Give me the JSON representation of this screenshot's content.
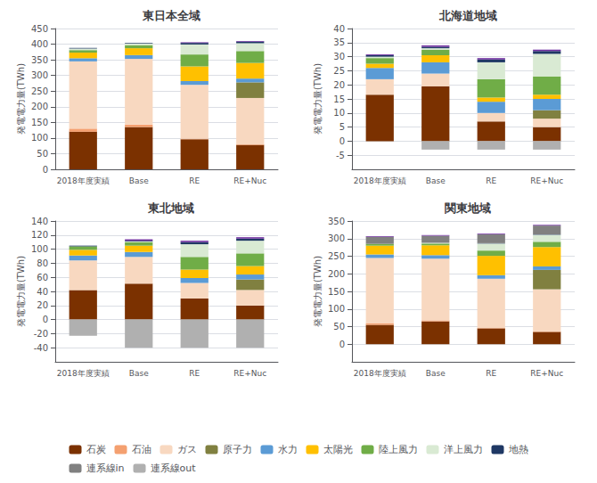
{
  "chart_data": [
    {
      "type": "bar",
      "title": "東日本全域",
      "ylabel": "発電電力量(TWh)",
      "categories": [
        "2018年度実績",
        "Base",
        "RE",
        "RE+Nuc"
      ],
      "stacked": true,
      "grid": true,
      "legend": "bottom",
      "ylim": [
        0,
        450
      ],
      "yticks": [
        0,
        50,
        100,
        150,
        200,
        250,
        300,
        350,
        400,
        450
      ],
      "series": [
        {
          "name": "石炭",
          "color": "#7B3100",
          "values": [
            120,
            135,
            96,
            78
          ]
        },
        {
          "name": "石油",
          "color": "#F4A070",
          "values": [
            10,
            8,
            2,
            2
          ]
        },
        {
          "name": "ガス",
          "color": "#F8D8C0",
          "values": [
            215,
            210,
            172,
            148
          ]
        },
        {
          "name": "原子力",
          "color": "#808040",
          "values": [
            0,
            0,
            0,
            50
          ]
        },
        {
          "name": "水力",
          "color": "#5B9BD5",
          "values": [
            10,
            12,
            12,
            12
          ]
        },
        {
          "name": "太陽光",
          "color": "#FFC000",
          "values": [
            18,
            22,
            47,
            50
          ]
        },
        {
          "name": "陸上風力",
          "color": "#70AD47",
          "values": [
            8,
            10,
            38,
            38
          ]
        },
        {
          "name": "洋上風力",
          "color": "#D9EAD3",
          "values": [
            5,
            5,
            32,
            25
          ]
        },
        {
          "name": "地熱",
          "color": "#1F3864",
          "values": [
            2,
            2,
            5,
            5
          ]
        },
        {
          "name": "連系線in",
          "color": "#808080",
          "values": [
            0,
            0,
            0,
            0
          ]
        },
        {
          "color": "#7030A0",
          "values": [
            0,
            0,
            2,
            2
          ]
        },
        {
          "name": "連系線out",
          "color": "#B0B0B0",
          "values": [
            0,
            0,
            0,
            0
          ]
        }
      ]
    },
    {
      "type": "bar",
      "title": "北海道地域",
      "ylabel": "発電電力量(TWh)",
      "categories": [
        "2018年度実績",
        "Base",
        "RE",
        "RE+Nuc"
      ],
      "stacked": true,
      "grid": true,
      "legend": "bottom",
      "ylim": [
        -10,
        40
      ],
      "yticks": [
        -5,
        0,
        5,
        10,
        15,
        20,
        25,
        30,
        35,
        40
      ],
      "series": [
        {
          "name": "石炭",
          "color": "#7B3100",
          "values": [
            16.5,
            19.5,
            7,
            5
          ]
        },
        {
          "name": "石油",
          "color": "#F4A070",
          "values": [
            0,
            0,
            0,
            0
          ]
        },
        {
          "name": "ガス",
          "color": "#F8D8C0",
          "values": [
            5.5,
            4.5,
            3,
            3
          ]
        },
        {
          "name": "原子力",
          "color": "#808040",
          "values": [
            0,
            0,
            0,
            3
          ]
        },
        {
          "name": "水力",
          "color": "#5B9BD5",
          "values": [
            4,
            4,
            4,
            4
          ]
        },
        {
          "name": "太陽光",
          "color": "#FFC000",
          "values": [
            1.5,
            2.5,
            1.5,
            1.5
          ]
        },
        {
          "name": "陸上風力",
          "color": "#70AD47",
          "values": [
            2,
            2,
            6.5,
            6.5
          ]
        },
        {
          "name": "洋上風力",
          "color": "#D9EAD3",
          "values": [
            0.5,
            0.5,
            6,
            8
          ]
        },
        {
          "name": "地熱",
          "color": "#1F3864",
          "values": [
            0.5,
            0.5,
            1,
            1
          ]
        },
        {
          "name": "連系線in",
          "color": "#808080",
          "values": [
            0,
            0,
            0,
            0
          ]
        },
        {
          "color": "#7030A0",
          "values": [
            0.3,
            0.5,
            0.5,
            0.5
          ]
        },
        {
          "name": "連系線out",
          "color": "#B0B0B0",
          "values": [
            0,
            -3,
            -3,
            -3
          ]
        }
      ]
    },
    {
      "type": "bar",
      "title": "東北地域",
      "ylabel": "発電電力量(TWh)",
      "categories": [
        "2018年度実績",
        "Base",
        "RE",
        "RE+Nuc"
      ],
      "stacked": true,
      "grid": true,
      "legend": "bottom",
      "ylim": [
        -60,
        140
      ],
      "yticks": [
        -40,
        -20,
        0,
        20,
        40,
        60,
        80,
        100,
        120,
        140
      ],
      "series": [
        {
          "name": "石炭",
          "color": "#7B3100",
          "values": [
            42,
            51,
            30,
            20
          ]
        },
        {
          "name": "石油",
          "color": "#F4A070",
          "values": [
            0,
            0,
            0,
            0
          ]
        },
        {
          "name": "ガス",
          "color": "#F8D8C0",
          "values": [
            42,
            38,
            22,
            22
          ]
        },
        {
          "name": "原子力",
          "color": "#808040",
          "values": [
            0,
            0,
            0,
            15
          ]
        },
        {
          "name": "水力",
          "color": "#5B9BD5",
          "values": [
            7,
            7,
            7,
            7
          ]
        },
        {
          "name": "太陽光",
          "color": "#FFC000",
          "values": [
            8,
            9,
            12,
            12
          ]
        },
        {
          "name": "陸上風力",
          "color": "#70AD47",
          "values": [
            5,
            5,
            18,
            18
          ]
        },
        {
          "name": "洋上風力",
          "color": "#D9EAD3",
          "values": [
            0,
            1,
            18,
            18
          ]
        },
        {
          "name": "地熱",
          "color": "#1F3864",
          "values": [
            1,
            1,
            3,
            3
          ]
        },
        {
          "name": "連系線in",
          "color": "#808080",
          "values": [
            0,
            0,
            0,
            0
          ]
        },
        {
          "color": "#7030A0",
          "values": [
            0,
            2,
            2,
            2
          ]
        },
        {
          "name": "連系線out",
          "color": "#B0B0B0",
          "values": [
            -23,
            -40,
            -40,
            -40
          ]
        }
      ]
    },
    {
      "type": "bar",
      "title": "関東地域",
      "ylabel": "発電電力量(TWh)",
      "categories": [
        "2018年度実績",
        "Base",
        "RE",
        "RE+Nuc"
      ],
      "stacked": true,
      "grid": true,
      "legend": "bottom",
      "ylim": [
        -50,
        350
      ],
      "yticks": [
        0,
        50,
        100,
        150,
        200,
        250,
        300,
        350
      ],
      "series": [
        {
          "name": "石炭",
          "color": "#7B3100",
          "values": [
            55,
            65,
            45,
            35
          ]
        },
        {
          "name": "石油",
          "color": "#F4A070",
          "values": [
            5,
            3,
            1,
            1
          ]
        },
        {
          "name": "ガス",
          "color": "#F8D8C0",
          "values": [
            185,
            175,
            140,
            120
          ]
        },
        {
          "name": "原子力",
          "color": "#808040",
          "values": [
            0,
            0,
            0,
            55
          ]
        },
        {
          "name": "水力",
          "color": "#5B9BD5",
          "values": [
            10,
            10,
            10,
            10
          ]
        },
        {
          "name": "太陽光",
          "color": "#FFC000",
          "values": [
            25,
            28,
            55,
            55
          ]
        },
        {
          "name": "陸上風力",
          "color": "#70AD47",
          "values": [
            5,
            5,
            15,
            15
          ]
        },
        {
          "name": "洋上風力",
          "color": "#D9EAD3",
          "values": [
            0,
            2,
            20,
            20
          ]
        },
        {
          "name": "地熱",
          "color": "#1F3864",
          "values": [
            0,
            0,
            1,
            1
          ]
        },
        {
          "name": "連系線in",
          "color": "#808080",
          "values": [
            20,
            20,
            25,
            25
          ]
        },
        {
          "color": "#7030A0",
          "values": [
            2,
            2,
            2,
            2
          ]
        },
        {
          "name": "連系線out",
          "color": "#B0B0B0",
          "values": [
            0,
            0,
            0,
            0
          ]
        }
      ]
    }
  ]
}
